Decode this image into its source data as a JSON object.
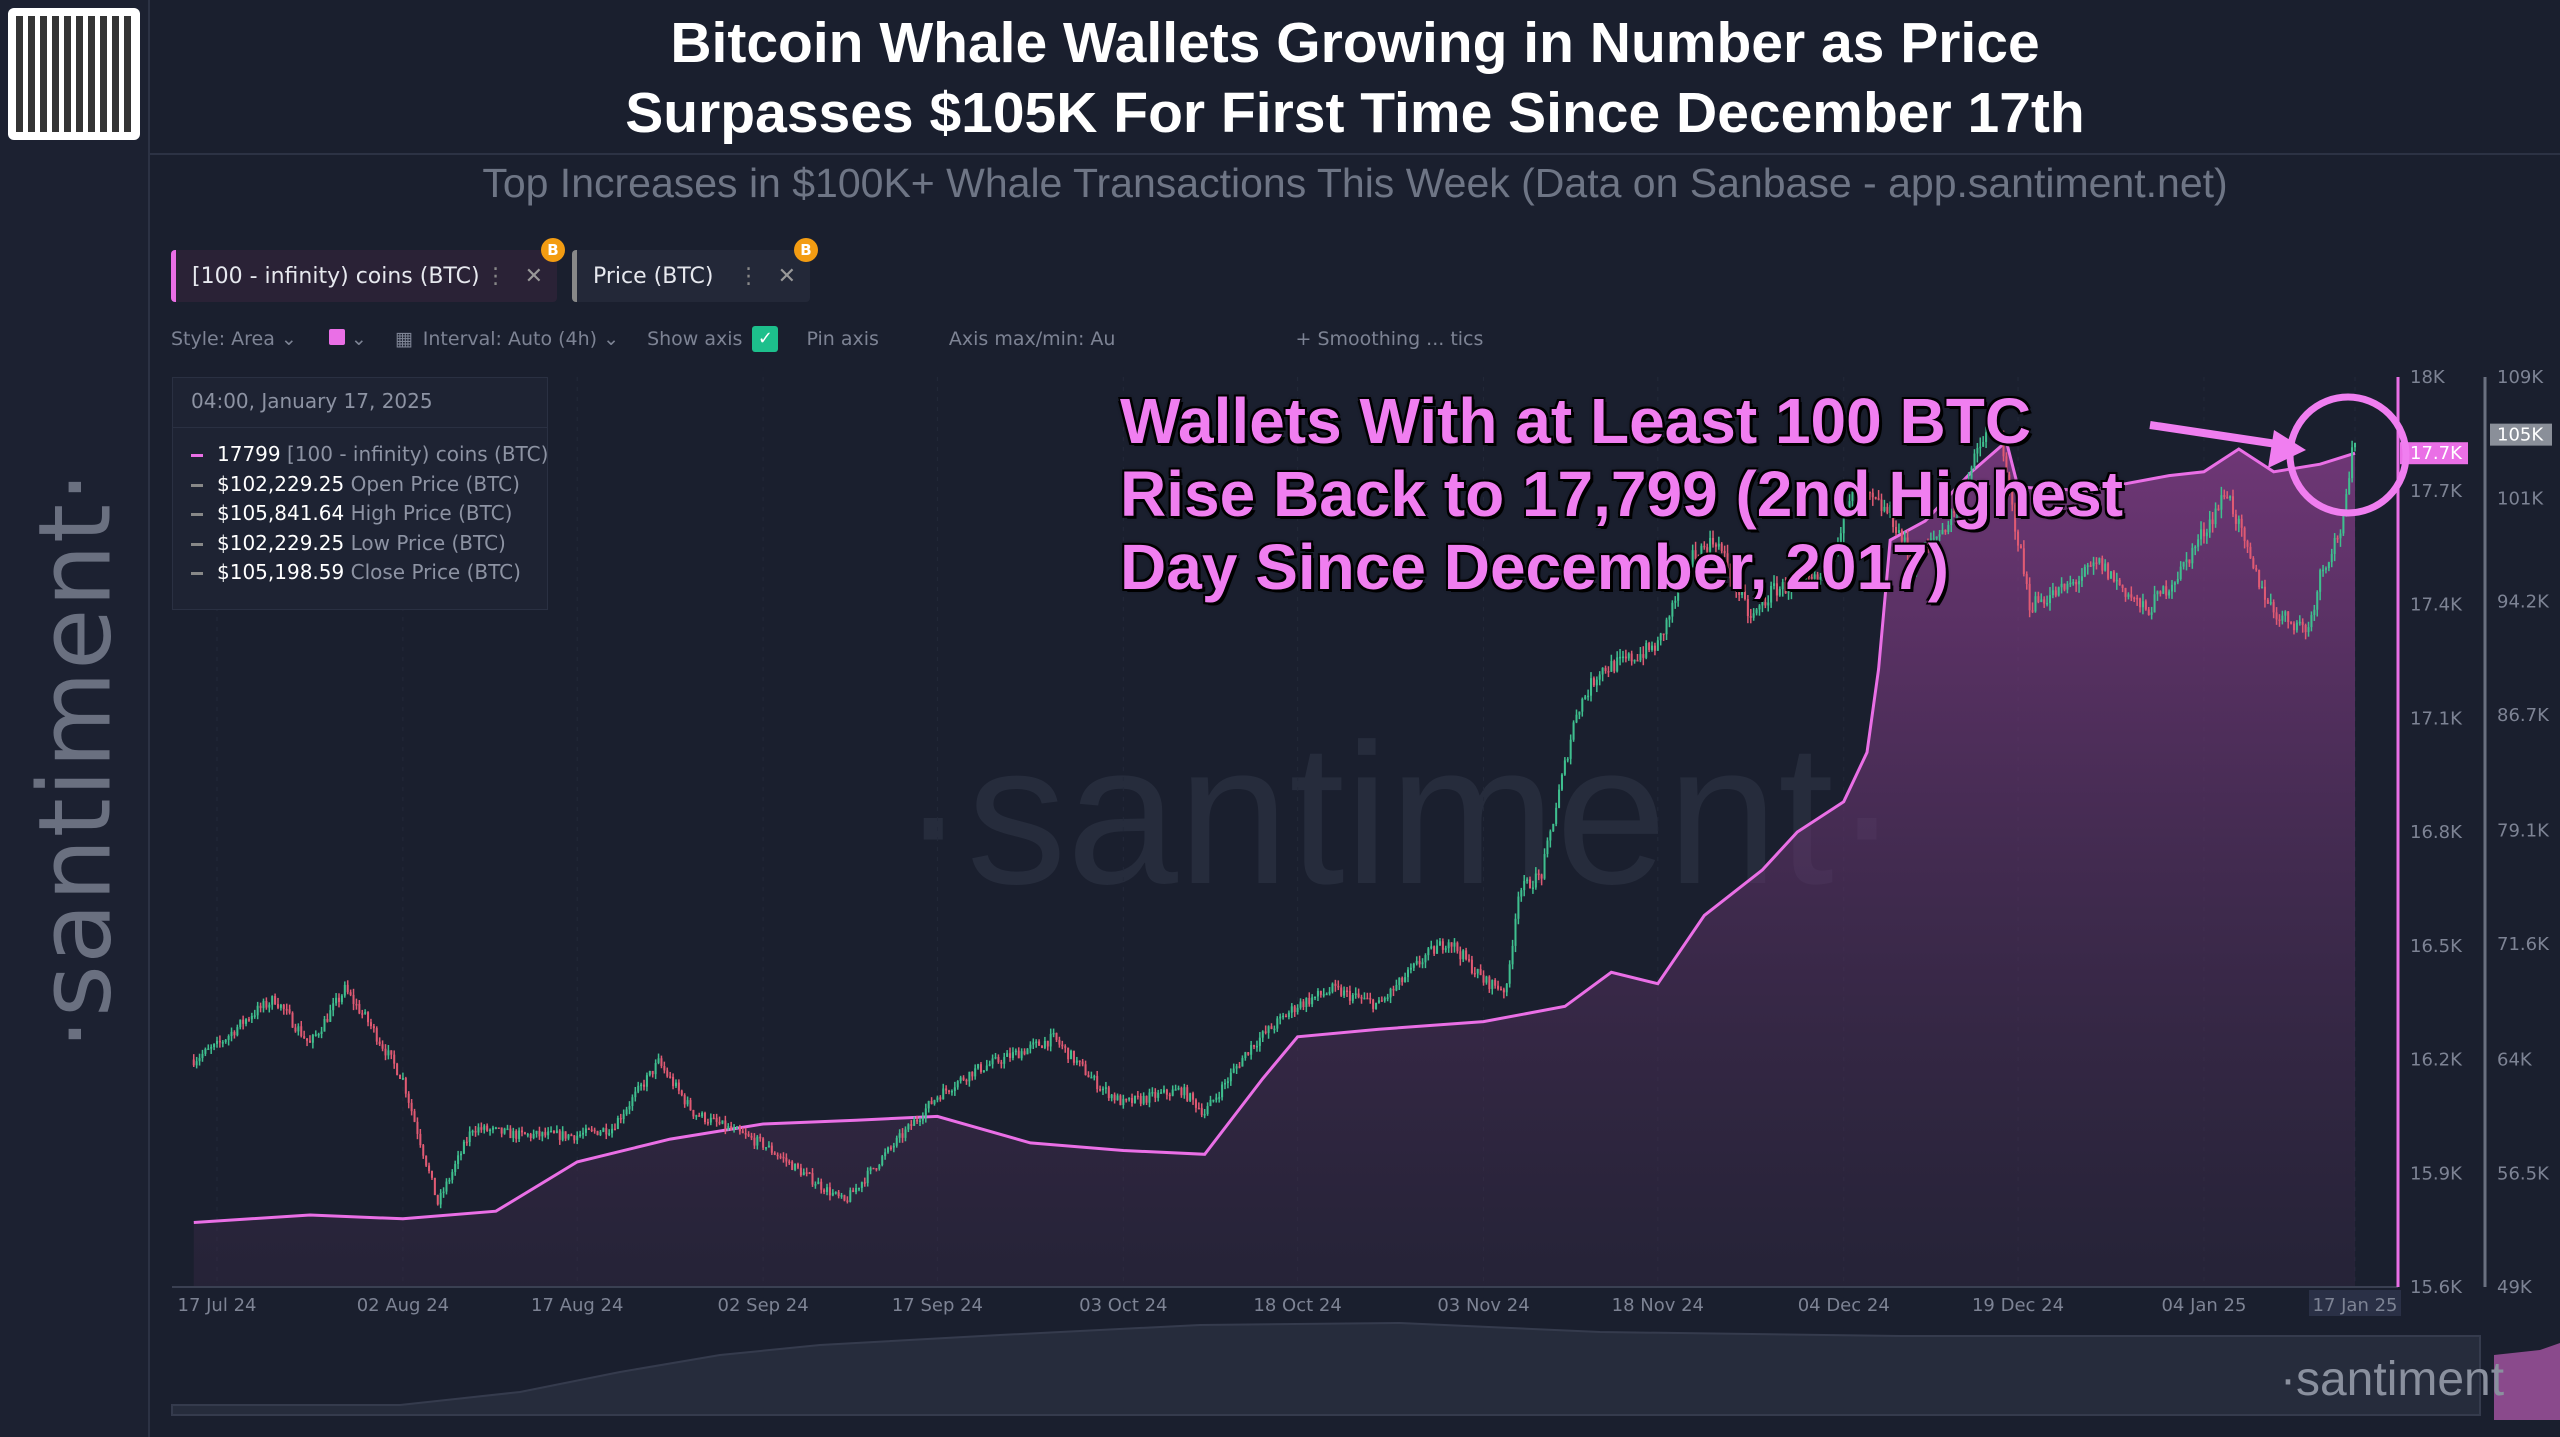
{
  "header": {
    "title_line1": "Bitcoin Whale Wallets Growing in Number as Price",
    "title_line2": "Surpasses $105K For First Time Since December 17th",
    "subtitle": "Top Increases in $100K+ Whale Transactions This Week (Data on Sanbase - app.santiment.net)"
  },
  "brand": {
    "sidebar": "·santiment·",
    "watermark": "·santiment·",
    "bottom": "·santiment"
  },
  "tabs": [
    {
      "label": "[100 - infinity) coins (BTC)",
      "badge": "B",
      "color": "#ea6fe6"
    },
    {
      "label": "Price (BTC)",
      "badge": "B",
      "color": "#888888"
    }
  ],
  "toolbar": {
    "style": "Style: Area",
    "interval": "Interval: Auto (4h)",
    "show_axis": "Show axis",
    "show_axis_checked": true,
    "pin_axis": "Pin axis",
    "axis_maxmin": "Axis max/min: Au",
    "smoothing": "+ Smoothing ... tics"
  },
  "legend": {
    "date": "04:00, January 17, 2025",
    "rows": [
      {
        "value": "17799",
        "label": "[100 - infinity) coins (BTC)",
        "color": "#ea6fe6"
      },
      {
        "value": "$102,229.25",
        "label": "Open Price (BTC)",
        "color": "#888888"
      },
      {
        "value": "$105,841.64",
        "label": "High Price (BTC)",
        "color": "#888888"
      },
      {
        "value": "$102,229.25",
        "label": "Low Price (BTC)",
        "color": "#888888"
      },
      {
        "value": "$105,198.59",
        "label": "Close Price (BTC)",
        "color": "#888888"
      }
    ]
  },
  "annotation": {
    "line1": "Wallets With at Least 100 BTC",
    "line2": "Rise Back to 17,799 (2nd Highest",
    "line3": "Day Since December, 2017)",
    "color": "#f07ef0"
  },
  "chart_data": {
    "type": "area+candlestick",
    "x_ticks": [
      "17 Jul 24",
      "02 Aug 24",
      "17 Aug 24",
      "02 Sep 24",
      "17 Sep 24",
      "03 Oct 24",
      "18 Oct 24",
      "03 Nov 24",
      "18 Nov 24",
      "04 Dec 24",
      "19 Dec 24",
      "04 Jan 25",
      "17 Jan 25"
    ],
    "x_tick_dates": [
      "2024-07-17",
      "2024-08-02",
      "2024-08-17",
      "2024-09-02",
      "2024-09-17",
      "2024-10-03",
      "2024-10-18",
      "2024-11-03",
      "2024-11-18",
      "2024-12-04",
      "2024-12-19",
      "2025-01-04",
      "2025-01-17"
    ],
    "left_axis": {
      "ticks": [
        "18K",
        "17.7K",
        "17.4K",
        "17.1K",
        "16.8K",
        "16.5K",
        "16.2K",
        "15.9K",
        "15.6K"
      ],
      "tick_values": [
        18000,
        17700,
        17400,
        17100,
        16800,
        16500,
        16200,
        15900,
        15600
      ],
      "ylim": [
        15600,
        18000
      ],
      "current_label": "17.7K"
    },
    "right_axis": {
      "ticks": [
        "109K",
        "101K",
        "94.2K",
        "86.7K",
        "79.1K",
        "71.6K",
        "64K",
        "56.5K",
        "49K"
      ],
      "tick_values": [
        109000,
        101000,
        94200,
        86700,
        79100,
        71600,
        64000,
        56500,
        49000
      ],
      "ylim": [
        49000,
        109000
      ],
      "current_label": "105K"
    },
    "series": [
      {
        "name": "[100 - infinity) coins (BTC)",
        "type": "area",
        "color": "#ea6fe6",
        "points": [
          [
            "2024-07-15",
            15770
          ],
          [
            "2024-07-25",
            15790
          ],
          [
            "2024-08-02",
            15780
          ],
          [
            "2024-08-10",
            15800
          ],
          [
            "2024-08-17",
            15930
          ],
          [
            "2024-08-25",
            15990
          ],
          [
            "2024-09-02",
            16030
          ],
          [
            "2024-09-10",
            16040
          ],
          [
            "2024-09-17",
            16050
          ],
          [
            "2024-09-25",
            15980
          ],
          [
            "2024-10-03",
            15960
          ],
          [
            "2024-10-10",
            15950
          ],
          [
            "2024-10-15",
            16150
          ],
          [
            "2024-10-18",
            16260
          ],
          [
            "2024-10-25",
            16280
          ],
          [
            "2024-11-03",
            16300
          ],
          [
            "2024-11-10",
            16340
          ],
          [
            "2024-11-14",
            16430
          ],
          [
            "2024-11-18",
            16400
          ],
          [
            "2024-11-22",
            16580
          ],
          [
            "2024-11-27",
            16700
          ],
          [
            "2024-11-30",
            16800
          ],
          [
            "2024-12-04",
            16880
          ],
          [
            "2024-12-06",
            17010
          ],
          [
            "2024-12-07",
            17230
          ],
          [
            "2024-12-08",
            17570
          ],
          [
            "2024-12-11",
            17620
          ],
          [
            "2024-12-15",
            17750
          ],
          [
            "2024-12-18",
            17830
          ],
          [
            "2024-12-19",
            17710
          ],
          [
            "2024-12-25",
            17700
          ],
          [
            "2025-01-01",
            17740
          ],
          [
            "2025-01-04",
            17750
          ],
          [
            "2025-01-07",
            17810
          ],
          [
            "2025-01-10",
            17750
          ],
          [
            "2025-01-14",
            17770
          ],
          [
            "2025-01-17",
            17799
          ]
        ]
      },
      {
        "name": "Price (BTC)",
        "type": "candlestick",
        "up_color": "#3fbf8f",
        "down_color": "#e05a73",
        "closes": [
          [
            "2024-07-15",
            64000
          ],
          [
            "2024-07-17",
            64900
          ],
          [
            "2024-07-20",
            67000
          ],
          [
            "2024-07-22",
            68000
          ],
          [
            "2024-07-25",
            65000
          ],
          [
            "2024-07-28",
            68600
          ],
          [
            "2024-07-30",
            66500
          ],
          [
            "2024-08-02",
            62700
          ],
          [
            "2024-08-05",
            54500
          ],
          [
            "2024-08-08",
            59500
          ],
          [
            "2024-08-12",
            59000
          ],
          [
            "2024-08-17",
            59000
          ],
          [
            "2024-08-20",
            59500
          ],
          [
            "2024-08-24",
            63800
          ],
          [
            "2024-08-27",
            60500
          ],
          [
            "2024-09-02",
            58400
          ],
          [
            "2024-09-06",
            56200
          ],
          [
            "2024-09-09",
            54600
          ],
          [
            "2024-09-12",
            57300
          ],
          [
            "2024-09-17",
            61600
          ],
          [
            "2024-09-20",
            63200
          ],
          [
            "2024-09-27",
            65400
          ],
          [
            "2024-10-01",
            62200
          ],
          [
            "2024-10-03",
            61100
          ],
          [
            "2024-10-08",
            62000
          ],
          [
            "2024-10-10",
            60500
          ],
          [
            "2024-10-14",
            64900
          ],
          [
            "2024-10-18",
            67600
          ],
          [
            "2024-10-21",
            68600
          ],
          [
            "2024-10-25",
            67600
          ],
          [
            "2024-10-29",
            70800
          ],
          [
            "2024-10-31",
            71900
          ],
          [
            "2024-11-03",
            69200
          ],
          [
            "2024-11-05",
            68600
          ],
          [
            "2024-11-06",
            75100
          ],
          [
            "2024-11-08",
            76200
          ],
          [
            "2024-11-11",
            87000
          ],
          [
            "2024-11-13",
            89700
          ],
          [
            "2024-11-15",
            90200
          ],
          [
            "2024-11-18",
            91300
          ],
          [
            "2024-11-21",
            97200
          ],
          [
            "2024-11-23",
            98300
          ],
          [
            "2024-11-26",
            93000
          ],
          [
            "2024-11-28",
            95000
          ],
          [
            "2024-12-02",
            95600
          ],
          [
            "2024-12-05",
            101500
          ],
          [
            "2024-12-08",
            100000
          ],
          [
            "2024-12-10",
            96700
          ],
          [
            "2024-12-13",
            99400
          ],
          [
            "2024-12-16",
            104800
          ],
          [
            "2024-12-17",
            106400
          ],
          [
            "2024-12-19",
            98300
          ],
          [
            "2024-12-20",
            94000
          ],
          [
            "2024-12-23",
            95000
          ],
          [
            "2024-12-26",
            96700
          ],
          [
            "2024-12-30",
            93500
          ],
          [
            "2025-01-02",
            96200
          ],
          [
            "2025-01-06",
            101500
          ],
          [
            "2025-01-08",
            96700
          ],
          [
            "2025-01-10",
            93500
          ],
          [
            "2025-01-13",
            92400
          ],
          [
            "2025-01-14",
            96000
          ],
          [
            "2025-01-16",
            99400
          ],
          [
            "2025-01-17",
            105200
          ]
        ]
      }
    ]
  }
}
